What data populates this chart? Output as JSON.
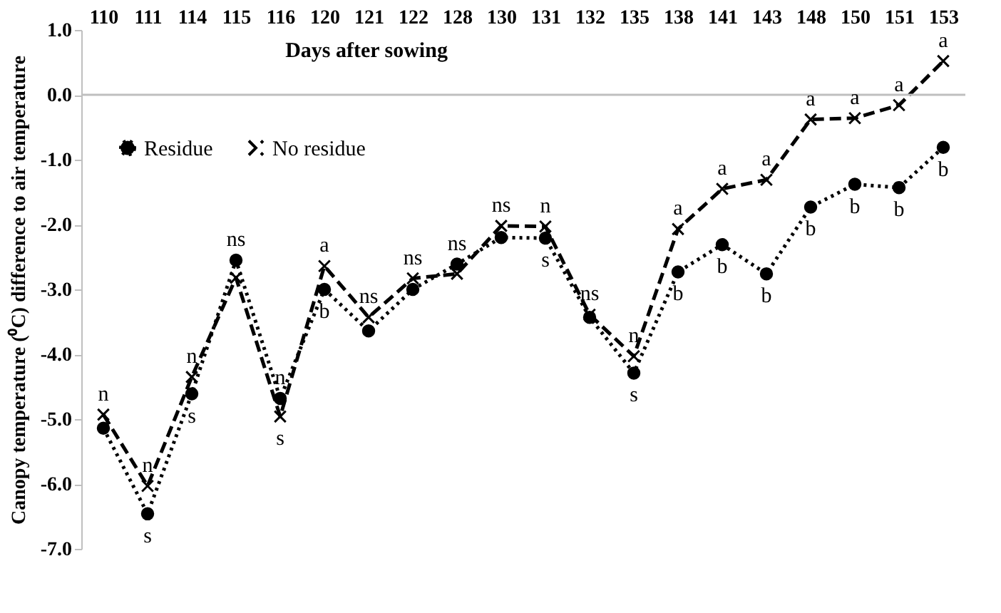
{
  "chart_data": {
    "type": "line",
    "xlabel": "Days after sowing",
    "ylabel": "Canopy temperature (⁰C) difference to air temperature",
    "categories": [
      "110",
      "111",
      "114",
      "115",
      "116",
      "120",
      "121",
      "122",
      "128",
      "130",
      "131",
      "132",
      "135",
      "138",
      "141",
      "143",
      "148",
      "150",
      "151",
      "153"
    ],
    "series": [
      {
        "name": "Residue",
        "color": "#000000",
        "marker": "circle",
        "line_style": "dotted",
        "values": [
          -5.14,
          -6.46,
          -4.61,
          -2.55,
          -4.68,
          -3.0,
          -3.64,
          -3.0,
          -2.61,
          -2.2,
          -2.21,
          -3.43,
          -4.29,
          -2.73,
          -2.31,
          -2.76,
          -1.73,
          -1.38,
          -1.43,
          -0.81
        ]
      },
      {
        "name": "No residue",
        "color": "#000000",
        "marker": "cross",
        "line_style": "dashed",
        "values": [
          -4.93,
          -6.03,
          -4.35,
          -2.82,
          -4.96,
          -2.64,
          -3.43,
          -2.83,
          -2.76,
          -2.02,
          -2.03,
          -3.39,
          -4.03,
          -2.07,
          -1.45,
          -1.31,
          -0.38,
          -0.36,
          -0.16,
          0.52
        ]
      }
    ],
    "ylim": [
      -7,
      1
    ],
    "yticks": [
      {
        "value": 1,
        "label": "1.0"
      },
      {
        "value": 0,
        "label": "0.0"
      },
      {
        "value": -1,
        "label": "-1.0"
      },
      {
        "value": -2,
        "label": "-2.0"
      },
      {
        "value": -3,
        "label": "-3.0"
      },
      {
        "value": -4,
        "label": "-4.0"
      },
      {
        "value": -5,
        "label": "-5.0"
      },
      {
        "value": -6,
        "label": "-6.0"
      },
      {
        "value": -7,
        "label": "-7.0"
      }
    ],
    "ref_lines": [
      {
        "axis": "y",
        "value": 0,
        "color": "#bfbfbf"
      }
    ],
    "legend": "top left",
    "grid": false,
    "annotations": [
      {
        "text": "n",
        "x": "110",
        "y": -4.93
      },
      {
        "text": "n",
        "x": "111",
        "y": -6.03
      },
      {
        "text": "s",
        "x": "111",
        "y": -6.46
      },
      {
        "text": "n",
        "x": "114",
        "y": -4.35
      },
      {
        "text": "s",
        "x": "114",
        "y": -4.61
      },
      {
        "text": "ns",
        "x": "115",
        "y": -2.55
      },
      {
        "text": "n",
        "x": "116",
        "y": -4.68
      },
      {
        "text": "s",
        "x": "116",
        "y": -4.96
      },
      {
        "text": "a",
        "x": "120",
        "y": -2.64
      },
      {
        "text": "b",
        "x": "120",
        "y": -3.0
      },
      {
        "text": "ns",
        "x": "121",
        "y": -3.43
      },
      {
        "text": "ns",
        "x": "122",
        "y": -2.83
      },
      {
        "text": "ns",
        "x": "128",
        "y": -2.61
      },
      {
        "text": "ns",
        "x": "130",
        "y": -2.02
      },
      {
        "text": "n",
        "x": "131",
        "y": -2.03
      },
      {
        "text": "s",
        "x": "131",
        "y": -2.21
      },
      {
        "text": "ns",
        "x": "132",
        "y": -3.39
      },
      {
        "text": "n",
        "x": "135",
        "y": -4.03
      },
      {
        "text": "s",
        "x": "135",
        "y": -4.29
      },
      {
        "text": "a",
        "x": "138",
        "y": -2.07
      },
      {
        "text": "b",
        "x": "138",
        "y": -2.73
      },
      {
        "text": "a",
        "x": "141",
        "y": -1.45
      },
      {
        "text": "b",
        "x": "141",
        "y": -2.31
      },
      {
        "text": "a",
        "x": "143",
        "y": -1.31
      },
      {
        "text": "b",
        "x": "143",
        "y": -2.76
      },
      {
        "text": "a",
        "x": "148",
        "y": -0.38
      },
      {
        "text": "b",
        "x": "148",
        "y": -1.73
      },
      {
        "text": "a",
        "x": "150",
        "y": -0.36
      },
      {
        "text": "b",
        "x": "150",
        "y": -1.38
      },
      {
        "text": "a",
        "x": "151",
        "y": -0.16
      },
      {
        "text": "b",
        "x": "151",
        "y": -1.43
      },
      {
        "text": "a",
        "x": "153",
        "y": 0.52
      },
      {
        "text": "b",
        "x": "153",
        "y": -0.81
      }
    ]
  }
}
